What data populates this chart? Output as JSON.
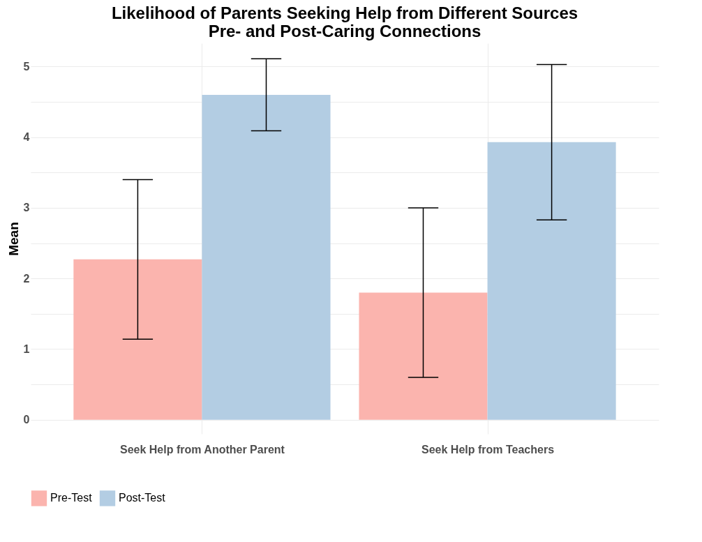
{
  "chart_data": {
    "type": "bar",
    "title": "Likelihood of Parents Seeking Help from Different Sources\nPre- and Post-Caring Connections",
    "ylabel": "Mean",
    "categories": [
      "Seek Help from Another Parent",
      "Seek Help from Teachers"
    ],
    "series": [
      {
        "name": "Pre-Test",
        "color": "#fbb4ae",
        "values": [
          2.27,
          1.8
        ],
        "errors": [
          [
            1.14,
            3.4
          ],
          [
            0.6,
            3.0
          ]
        ]
      },
      {
        "name": "Post-Test",
        "color": "#b3cde3",
        "values": [
          4.6,
          3.93
        ],
        "errors": [
          [
            4.09,
            5.11
          ],
          [
            2.83,
            5.03
          ]
        ]
      }
    ],
    "ylim": [
      -0.2,
      5.33
    ],
    "yticks": [
      0,
      {
        "value": 0.5,
        "label": null
      },
      1,
      {
        "value": 1.5,
        "label": null
      },
      2,
      {
        "value": 2.5,
        "label": null
      },
      3,
      {
        "value": 3.5,
        "label": null
      },
      4,
      {
        "value": 4.5,
        "label": null
      },
      5
    ],
    "grid": true,
    "legend": "bottom"
  }
}
